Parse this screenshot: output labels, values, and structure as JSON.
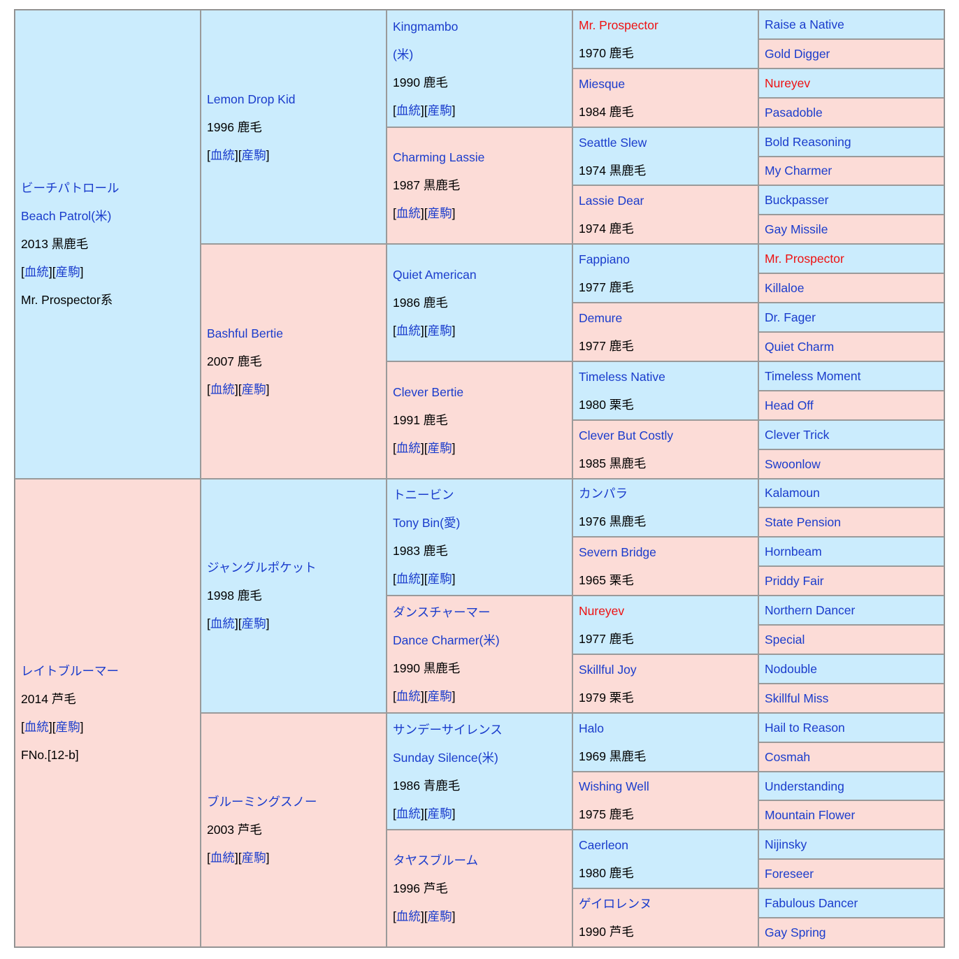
{
  "pedigree": {
    "colors": {
      "sire_bg": "#cbecfd",
      "dam_bg": "#fcdcd7",
      "link": "#1a3ccc",
      "duplicate_name": "#ee1111",
      "border": "#9a9a9a",
      "border_outer": "#8c8c8c"
    },
    "link_labels": {
      "blood": "血統",
      "offspring": "産駒"
    },
    "cells": [
      {
        "gen": 1,
        "row": 1,
        "span": 16,
        "sex": "sire",
        "name": [
          "ビーチパトロール",
          "Beach Patrol(米)"
        ],
        "name_style": "link",
        "detail": "2013 黒鹿毛",
        "links": true,
        "extra": "Mr. Prospector系"
      },
      {
        "gen": 1,
        "row": 17,
        "span": 16,
        "sex": "dam",
        "name": [
          "レイトブルーマー"
        ],
        "name_style": "link",
        "detail": "2014 芦毛",
        "links": true,
        "extra": "FNo.[12-b]"
      },
      {
        "gen": 2,
        "row": 1,
        "span": 8,
        "sex": "sire",
        "name": [
          "Lemon Drop Kid"
        ],
        "name_style": "link",
        "detail": "1996 鹿毛",
        "links": true
      },
      {
        "gen": 2,
        "row": 9,
        "span": 8,
        "sex": "dam",
        "name": [
          "Bashful Bertie"
        ],
        "name_style": "link",
        "detail": "2007 鹿毛",
        "links": true
      },
      {
        "gen": 2,
        "row": 17,
        "span": 8,
        "sex": "sire",
        "name": [
          "ジャングルポケット"
        ],
        "name_style": "link",
        "detail": "1998 鹿毛",
        "links": true
      },
      {
        "gen": 2,
        "row": 25,
        "span": 8,
        "sex": "dam",
        "name": [
          "ブルーミングスノー"
        ],
        "name_style": "link",
        "detail": "2003 芦毛",
        "links": true
      },
      {
        "gen": 3,
        "row": 1,
        "span": 4,
        "sex": "sire",
        "name": [
          "Kingmambo",
          "(米)"
        ],
        "name_style": "link",
        "detail": "1990 鹿毛",
        "links": true
      },
      {
        "gen": 3,
        "row": 5,
        "span": 4,
        "sex": "dam",
        "name": [
          "Charming Lassie"
        ],
        "name_style": "link",
        "detail": "1987 黒鹿毛",
        "links": true
      },
      {
        "gen": 3,
        "row": 9,
        "span": 4,
        "sex": "sire",
        "name": [
          "Quiet American"
        ],
        "name_style": "link",
        "detail": "1986 鹿毛",
        "links": true
      },
      {
        "gen": 3,
        "row": 13,
        "span": 4,
        "sex": "dam",
        "name": [
          "Clever Bertie"
        ],
        "name_style": "link",
        "detail": "1991 鹿毛",
        "links": true
      },
      {
        "gen": 3,
        "row": 17,
        "span": 4,
        "sex": "sire",
        "name": [
          "トニービン",
          "Tony Bin(愛)"
        ],
        "name_style": "link",
        "detail": "1983 鹿毛",
        "links": true
      },
      {
        "gen": 3,
        "row": 21,
        "span": 4,
        "sex": "dam",
        "name": [
          "ダンスチャーマー",
          "Dance Charmer(米)"
        ],
        "name_style": "link",
        "detail": "1990 黒鹿毛",
        "links": true
      },
      {
        "gen": 3,
        "row": 25,
        "span": 4,
        "sex": "sire",
        "name": [
          "サンデーサイレンス",
          "Sunday Silence(米)"
        ],
        "name_style": "link",
        "detail": "1986 青鹿毛",
        "links": true
      },
      {
        "gen": 3,
        "row": 29,
        "span": 4,
        "sex": "dam",
        "name": [
          "タヤスブルーム"
        ],
        "name_style": "link",
        "detail": "1996 芦毛",
        "links": true
      },
      {
        "gen": 4,
        "row": 1,
        "span": 2,
        "sex": "sire",
        "name": [
          "Mr. Prospector"
        ],
        "name_style": "dup",
        "detail": "1970 鹿毛"
      },
      {
        "gen": 4,
        "row": 3,
        "span": 2,
        "sex": "dam",
        "name": [
          "Miesque"
        ],
        "name_style": "link",
        "detail": "1984 鹿毛"
      },
      {
        "gen": 4,
        "row": 5,
        "span": 2,
        "sex": "sire",
        "name": [
          "Seattle Slew"
        ],
        "name_style": "link",
        "detail": "1974 黒鹿毛"
      },
      {
        "gen": 4,
        "row": 7,
        "span": 2,
        "sex": "dam",
        "name": [
          "Lassie Dear"
        ],
        "name_style": "link",
        "detail": "1974 鹿毛"
      },
      {
        "gen": 4,
        "row": 9,
        "span": 2,
        "sex": "sire",
        "name": [
          "Fappiano"
        ],
        "name_style": "link",
        "detail": "1977 鹿毛"
      },
      {
        "gen": 4,
        "row": 11,
        "span": 2,
        "sex": "dam",
        "name": [
          "Demure"
        ],
        "name_style": "link",
        "detail": "1977 鹿毛"
      },
      {
        "gen": 4,
        "row": 13,
        "span": 2,
        "sex": "sire",
        "name": [
          "Timeless Native"
        ],
        "name_style": "link",
        "detail": "1980 栗毛"
      },
      {
        "gen": 4,
        "row": 15,
        "span": 2,
        "sex": "dam",
        "name": [
          "Clever But Costly"
        ],
        "name_style": "link",
        "detail": "1985 黒鹿毛"
      },
      {
        "gen": 4,
        "row": 17,
        "span": 2,
        "sex": "sire",
        "name": [
          "カンパラ"
        ],
        "name_style": "link",
        "detail": "1976 黒鹿毛"
      },
      {
        "gen": 4,
        "row": 19,
        "span": 2,
        "sex": "dam",
        "name": [
          "Severn Bridge"
        ],
        "name_style": "link",
        "detail": "1965 栗毛"
      },
      {
        "gen": 4,
        "row": 21,
        "span": 2,
        "sex": "sire",
        "name": [
          "Nureyev"
        ],
        "name_style": "dup",
        "detail": "1977 鹿毛"
      },
      {
        "gen": 4,
        "row": 23,
        "span": 2,
        "sex": "dam",
        "name": [
          "Skillful Joy"
        ],
        "name_style": "link",
        "detail": "1979 栗毛"
      },
      {
        "gen": 4,
        "row": 25,
        "span": 2,
        "sex": "sire",
        "name": [
          "Halo"
        ],
        "name_style": "link",
        "detail": "1969 黒鹿毛"
      },
      {
        "gen": 4,
        "row": 27,
        "span": 2,
        "sex": "dam",
        "name": [
          "Wishing Well"
        ],
        "name_style": "link",
        "detail": "1975 鹿毛"
      },
      {
        "gen": 4,
        "row": 29,
        "span": 2,
        "sex": "sire",
        "name": [
          "Caerleon"
        ],
        "name_style": "link",
        "detail": "1980 鹿毛"
      },
      {
        "gen": 4,
        "row": 31,
        "span": 2,
        "sex": "dam",
        "name": [
          "ゲイロレンヌ"
        ],
        "name_style": "link",
        "detail": "1990 芦毛"
      },
      {
        "gen": 5,
        "row": 1,
        "span": 1,
        "sex": "sire",
        "name": [
          "Raise a Native"
        ],
        "name_style": "link"
      },
      {
        "gen": 5,
        "row": 2,
        "span": 1,
        "sex": "dam",
        "name": [
          "Gold Digger"
        ],
        "name_style": "link"
      },
      {
        "gen": 5,
        "row": 3,
        "span": 1,
        "sex": "sire",
        "name": [
          "Nureyev"
        ],
        "name_style": "dup"
      },
      {
        "gen": 5,
        "row": 4,
        "span": 1,
        "sex": "dam",
        "name": [
          "Pasadoble"
        ],
        "name_style": "link"
      },
      {
        "gen": 5,
        "row": 5,
        "span": 1,
        "sex": "sire",
        "name": [
          "Bold Reasoning"
        ],
        "name_style": "link"
      },
      {
        "gen": 5,
        "row": 6,
        "span": 1,
        "sex": "dam",
        "name": [
          "My Charmer"
        ],
        "name_style": "link"
      },
      {
        "gen": 5,
        "row": 7,
        "span": 1,
        "sex": "sire",
        "name": [
          "Buckpasser"
        ],
        "name_style": "link"
      },
      {
        "gen": 5,
        "row": 8,
        "span": 1,
        "sex": "dam",
        "name": [
          "Gay Missile"
        ],
        "name_style": "link"
      },
      {
        "gen": 5,
        "row": 9,
        "span": 1,
        "sex": "sire",
        "name": [
          "Mr. Prospector"
        ],
        "name_style": "dup"
      },
      {
        "gen": 5,
        "row": 10,
        "span": 1,
        "sex": "dam",
        "name": [
          "Killaloe"
        ],
        "name_style": "link"
      },
      {
        "gen": 5,
        "row": 11,
        "span": 1,
        "sex": "sire",
        "name": [
          "Dr. Fager"
        ],
        "name_style": "link"
      },
      {
        "gen": 5,
        "row": 12,
        "span": 1,
        "sex": "dam",
        "name": [
          "Quiet Charm"
        ],
        "name_style": "link"
      },
      {
        "gen": 5,
        "row": 13,
        "span": 1,
        "sex": "sire",
        "name": [
          "Timeless Moment"
        ],
        "name_style": "link"
      },
      {
        "gen": 5,
        "row": 14,
        "span": 1,
        "sex": "dam",
        "name": [
          "Head Off"
        ],
        "name_style": "link"
      },
      {
        "gen": 5,
        "row": 15,
        "span": 1,
        "sex": "sire",
        "name": [
          "Clever Trick"
        ],
        "name_style": "link"
      },
      {
        "gen": 5,
        "row": 16,
        "span": 1,
        "sex": "dam",
        "name": [
          "Swoonlow"
        ],
        "name_style": "link"
      },
      {
        "gen": 5,
        "row": 17,
        "span": 1,
        "sex": "sire",
        "name": [
          "Kalamoun"
        ],
        "name_style": "link"
      },
      {
        "gen": 5,
        "row": 18,
        "span": 1,
        "sex": "dam",
        "name": [
          "State Pension"
        ],
        "name_style": "link"
      },
      {
        "gen": 5,
        "row": 19,
        "span": 1,
        "sex": "sire",
        "name": [
          "Hornbeam"
        ],
        "name_style": "link"
      },
      {
        "gen": 5,
        "row": 20,
        "span": 1,
        "sex": "dam",
        "name": [
          "Priddy Fair"
        ],
        "name_style": "link"
      },
      {
        "gen": 5,
        "row": 21,
        "span": 1,
        "sex": "sire",
        "name": [
          "Northern Dancer"
        ],
        "name_style": "link"
      },
      {
        "gen": 5,
        "row": 22,
        "span": 1,
        "sex": "dam",
        "name": [
          "Special"
        ],
        "name_style": "link"
      },
      {
        "gen": 5,
        "row": 23,
        "span": 1,
        "sex": "sire",
        "name": [
          "Nodouble"
        ],
        "name_style": "link"
      },
      {
        "gen": 5,
        "row": 24,
        "span": 1,
        "sex": "dam",
        "name": [
          "Skillful Miss"
        ],
        "name_style": "link"
      },
      {
        "gen": 5,
        "row": 25,
        "span": 1,
        "sex": "sire",
        "name": [
          "Hail to Reason"
        ],
        "name_style": "link"
      },
      {
        "gen": 5,
        "row": 26,
        "span": 1,
        "sex": "dam",
        "name": [
          "Cosmah"
        ],
        "name_style": "link"
      },
      {
        "gen": 5,
        "row": 27,
        "span": 1,
        "sex": "sire",
        "name": [
          "Understanding"
        ],
        "name_style": "link"
      },
      {
        "gen": 5,
        "row": 28,
        "span": 1,
        "sex": "dam",
        "name": [
          "Mountain Flower"
        ],
        "name_style": "link"
      },
      {
        "gen": 5,
        "row": 29,
        "span": 1,
        "sex": "sire",
        "name": [
          "Nijinsky"
        ],
        "name_style": "link"
      },
      {
        "gen": 5,
        "row": 30,
        "span": 1,
        "sex": "dam",
        "name": [
          "Foreseer"
        ],
        "name_style": "link"
      },
      {
        "gen": 5,
        "row": 31,
        "span": 1,
        "sex": "sire",
        "name": [
          "Fabulous Dancer"
        ],
        "name_style": "link"
      },
      {
        "gen": 5,
        "row": 32,
        "span": 1,
        "sex": "dam",
        "name": [
          "Gay Spring"
        ],
        "name_style": "link"
      }
    ]
  }
}
